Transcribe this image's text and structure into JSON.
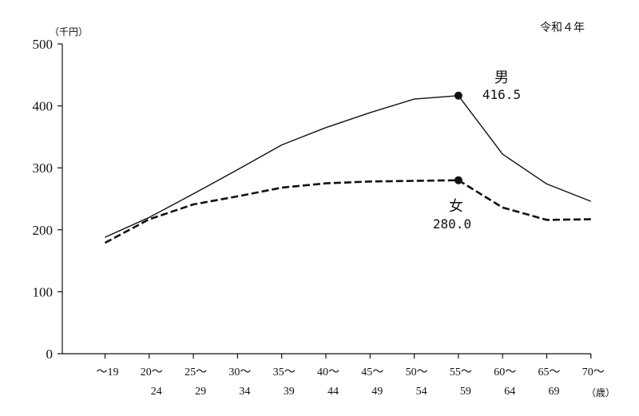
{
  "chart_data": {
    "type": "line",
    "title": "令和４年",
    "ylabel": "（千円）",
    "xlabel": "（歳）",
    "ylim": [
      0,
      500
    ],
    "yticks": [
      0,
      100,
      200,
      300,
      400,
      500
    ],
    "categories": [
      {
        "line1": "～19",
        "line2": ""
      },
      {
        "line1": "20～",
        "line2": "24"
      },
      {
        "line1": "25～",
        "line2": "29"
      },
      {
        "line1": "30～",
        "line2": "34"
      },
      {
        "line1": "35～",
        "line2": "39"
      },
      {
        "line1": "40～",
        "line2": "44"
      },
      {
        "line1": "45～",
        "line2": "49"
      },
      {
        "line1": "50～",
        "line2": "54"
      },
      {
        "line1": "55～",
        "line2": "59"
      },
      {
        "line1": "60～",
        "line2": "64"
      },
      {
        "line1": "65～",
        "line2": "69"
      },
      {
        "line1": "70～",
        "line2": ""
      }
    ],
    "series": [
      {
        "name": "男",
        "style": "solid",
        "color": "#111111",
        "values": [
          188,
          220,
          258,
          297,
          337,
          365,
          389,
          411,
          416.5,
          322,
          274,
          246
        ],
        "highlight_index": 8,
        "highlight_label": "416.5"
      },
      {
        "name": "女",
        "style": "dashed",
        "color": "#111111",
        "values": [
          179,
          217,
          241,
          254,
          268,
          275,
          278,
          279,
          280.0,
          236,
          216,
          217
        ],
        "highlight_index": 8,
        "highlight_label": "280.0"
      }
    ],
    "grid": false,
    "legend": "inline-annotations"
  }
}
